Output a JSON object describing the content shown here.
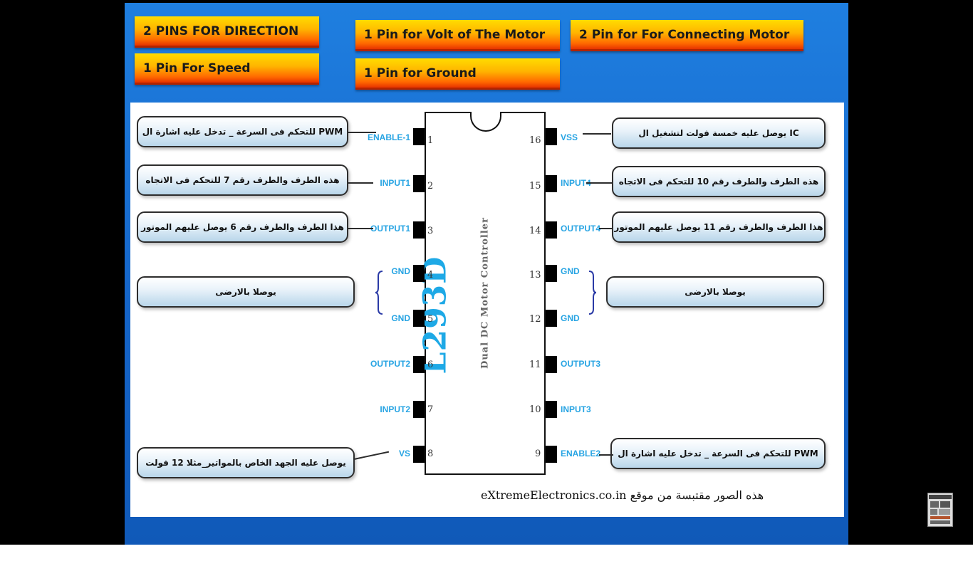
{
  "tags": {
    "direction": "2 PINS FOR DIRECTION",
    "speed": "1 Pin For Speed",
    "volt": "1 Pin for Volt of The Motor",
    "ground": "1 Pin for Ground",
    "connecting": "2 Pin for For Connecting Motor"
  },
  "chip": {
    "name": "L293D",
    "subtitle": "Dual DC Motor Controller",
    "left_pins": [
      {
        "num": "1",
        "label": "ENABLE-1"
      },
      {
        "num": "2",
        "label": "INPUT1"
      },
      {
        "num": "3",
        "label": "OUTPUT1"
      },
      {
        "num": "4",
        "label": "GND"
      },
      {
        "num": "5",
        "label": "GND"
      },
      {
        "num": "6",
        "label": "OUTPUT2"
      },
      {
        "num": "7",
        "label": "INPUT2"
      },
      {
        "num": "8",
        "label": "VS"
      }
    ],
    "right_pins": [
      {
        "num": "16",
        "label": "VSS"
      },
      {
        "num": "15",
        "label": "INPUT4"
      },
      {
        "num": "14",
        "label": "OUTPUT4"
      },
      {
        "num": "13",
        "label": "GND"
      },
      {
        "num": "12",
        "label": "GND"
      },
      {
        "num": "11",
        "label": "OUTPUT3"
      },
      {
        "num": "10",
        "label": "INPUT3"
      },
      {
        "num": "9",
        "label": "ENABLE2"
      }
    ]
  },
  "callouts": {
    "enable1": "للتحكم فى السرعة _ تدخل عليه اشارة ال PWM",
    "input1": "هذه الطرف والطرف رقم 7 للتحكم فى الاتجاه",
    "output1": "هذا الطرف والطرف رقم 6 يوصل عليهم الموتور",
    "gnd_left": "يوصلا بالارضى",
    "vs": "يوصل عليه الجهد الخاص بالمواتير_مثلا 12 فولت",
    "vss": "يوصل عليه خمسة فولت لتشغيل ال IC",
    "input4": "هذه الطرف والطرف رقم 10 للتحكم فى الاتجاه",
    "output4": "هذا الطرف والطرف رقم 11 يوصل عليهم الموتور",
    "gnd_right": "يوصلا بالارضى",
    "enable2": "للتحكم فى السرعة _ تدخل عليه اشارة ال PWM"
  },
  "footer": "هذه الصور مقتبسة من موقع eXtremeElectronics.co.in"
}
